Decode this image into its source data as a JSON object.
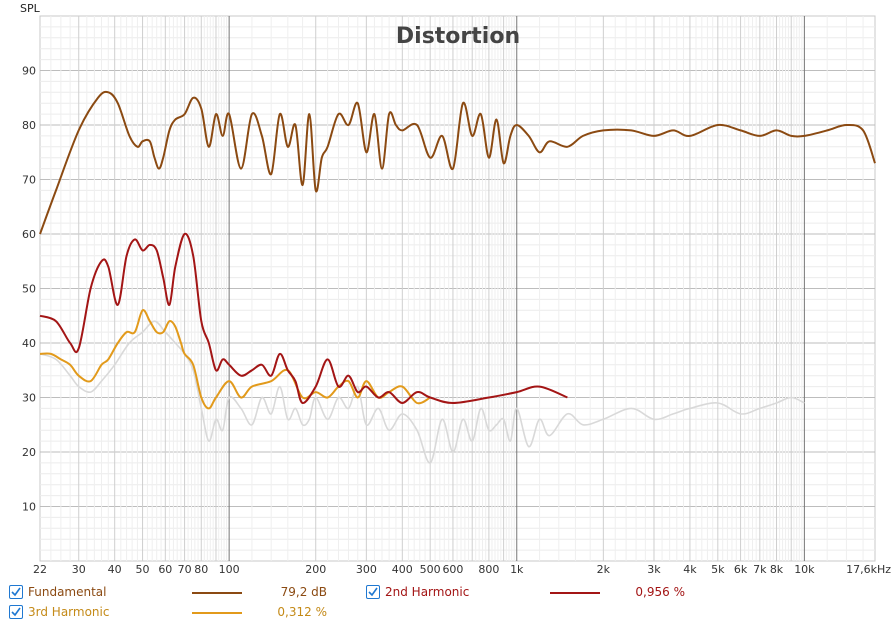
{
  "chart_data": {
    "type": "line",
    "title": "Distortion",
    "ylabel": "SPL",
    "xscale": "log",
    "xlim": [
      22,
      17600
    ],
    "ylim": [
      0,
      100
    ],
    "grid": true,
    "yticks": [
      10,
      20,
      30,
      40,
      50,
      60,
      70,
      80,
      90
    ],
    "xticks": [
      {
        "v": 22,
        "label": "22"
      },
      {
        "v": 30,
        "label": "30"
      },
      {
        "v": 40,
        "label": "40"
      },
      {
        "v": 50,
        "label": "50"
      },
      {
        "v": 60,
        "label": "60"
      },
      {
        "v": 70,
        "label": "70"
      },
      {
        "v": 80,
        "label": "80"
      },
      {
        "v": 100,
        "label": "100"
      },
      {
        "v": 200,
        "label": "200"
      },
      {
        "v": 300,
        "label": "300"
      },
      {
        "v": 400,
        "label": "400"
      },
      {
        "v": 500,
        "label": "500"
      },
      {
        "v": 600,
        "label": "600"
      },
      {
        "v": 800,
        "label": "800"
      },
      {
        "v": 1000,
        "label": "1k"
      },
      {
        "v": 2000,
        "label": "2k"
      },
      {
        "v": 3000,
        "label": "3k"
      },
      {
        "v": 4000,
        "label": "4k"
      },
      {
        "v": 5000,
        "label": "5k"
      },
      {
        "v": 6000,
        "label": "6k"
      },
      {
        "v": 7000,
        "label": "7k"
      },
      {
        "v": 8000,
        "label": "8k"
      },
      {
        "v": 10000,
        "label": "10k"
      },
      {
        "v": 17600,
        "label": "17,6kHz"
      }
    ],
    "series": [
      {
        "name": "Fundamental",
        "color": "#8b4a12",
        "x": [
          22,
          25,
          30,
          35,
          38,
          41,
          45,
          48,
          50,
          53,
          55,
          57,
          59,
          62,
          65,
          70,
          75,
          80,
          85,
          90,
          95,
          100,
          110,
          120,
          130,
          140,
          150,
          160,
          170,
          180,
          190,
          200,
          210,
          220,
          240,
          260,
          280,
          300,
          320,
          340,
          360,
          380,
          400,
          450,
          500,
          550,
          600,
          650,
          700,
          750,
          800,
          850,
          900,
          950,
          1000,
          1100,
          1200,
          1300,
          1500,
          1700,
          2000,
          2500,
          3000,
          3500,
          4000,
          5000,
          6000,
          7000,
          8000,
          9000,
          10000,
          12000,
          14000,
          16000,
          17600
        ],
        "y": [
          60,
          68,
          79,
          85,
          86,
          84,
          78,
          76,
          77,
          77,
          74,
          72,
          74,
          79,
          81,
          82,
          85,
          83,
          76,
          82,
          78,
          82,
          72,
          82,
          78,
          71,
          82,
          76,
          80,
          69,
          82,
          68,
          74,
          76,
          82,
          80,
          84,
          75,
          82,
          72,
          82,
          80,
          79,
          80,
          74,
          78,
          72,
          84,
          78,
          82,
          74,
          81,
          73,
          78,
          80,
          78,
          75,
          77,
          76,
          78,
          79,
          79,
          78,
          79,
          78,
          80,
          79,
          78,
          79,
          78,
          78,
          79,
          80,
          79,
          73
        ]
      },
      {
        "name": "2nd Harmonic",
        "color": "#a31515",
        "x": [
          22,
          25,
          28,
          30,
          33,
          36,
          38,
          41,
          44,
          47,
          50,
          53,
          56,
          59,
          62,
          65,
          70,
          75,
          80,
          85,
          90,
          95,
          100,
          110,
          120,
          130,
          140,
          150,
          160,
          170,
          180,
          200,
          220,
          240,
          260,
          280,
          300,
          330,
          360,
          400,
          450,
          500,
          600,
          800,
          1000,
          1200,
          1500
        ],
        "y": [
          45,
          44,
          40,
          39,
          50,
          55,
          54,
          47,
          56,
          59,
          57,
          58,
          57,
          52,
          47,
          54,
          60,
          56,
          44,
          40,
          35,
          37,
          36,
          34,
          35,
          36,
          34,
          38,
          35,
          33,
          29,
          32,
          37,
          32,
          34,
          31,
          32,
          30,
          31,
          29,
          31,
          30,
          29,
          30,
          31,
          32,
          30
        ]
      },
      {
        "name": "3rd Harmonic",
        "color": "#e29a1b",
        "x": [
          22,
          24,
          26,
          28,
          30,
          33,
          36,
          38,
          41,
          44,
          47,
          50,
          53,
          56,
          59,
          62,
          65,
          68,
          70,
          75,
          80,
          85,
          90,
          100,
          110,
          120,
          140,
          160,
          180,
          200,
          220,
          240,
          260,
          280,
          300,
          330,
          360,
          400,
          450,
          500
        ],
        "y": [
          38,
          38,
          37,
          36,
          34,
          33,
          36,
          37,
          40,
          42,
          42,
          46,
          44,
          42,
          42,
          44,
          43,
          40,
          38,
          36,
          30,
          28,
          30,
          33,
          30,
          32,
          33,
          35,
          30,
          31,
          30,
          32,
          33,
          30,
          33,
          30,
          31,
          32,
          29,
          30
        ]
      },
      {
        "name": "THD background",
        "color": "#d9d9d9",
        "x": [
          22,
          25,
          28,
          30,
          33,
          36,
          40,
          45,
          50,
          55,
          60,
          65,
          70,
          75,
          80,
          85,
          90,
          95,
          100,
          110,
          120,
          130,
          140,
          150,
          160,
          170,
          180,
          190,
          200,
          220,
          240,
          260,
          280,
          300,
          330,
          360,
          400,
          450,
          500,
          550,
          600,
          650,
          700,
          750,
          800,
          850,
          900,
          950,
          1000,
          1100,
          1200,
          1300,
          1500,
          1700,
          2000,
          2500,
          3000,
          3500,
          4000,
          5000,
          6000,
          7000,
          8000,
          9000,
          10000
        ],
        "y": [
          38,
          37,
          34,
          32,
          31,
          33,
          36,
          40,
          42,
          44,
          42,
          40,
          38,
          35,
          28,
          22,
          26,
          24,
          30,
          28,
          25,
          30,
          27,
          32,
          26,
          28,
          25,
          26,
          30,
          26,
          30,
          28,
          32,
          25,
          28,
          24,
          27,
          24,
          18,
          26,
          20,
          26,
          22,
          28,
          24,
          25,
          26,
          22,
          28,
          21,
          26,
          23,
          27,
          25,
          26,
          28,
          26,
          27,
          28,
          29,
          27,
          28,
          29,
          30,
          29
        ]
      }
    ]
  },
  "legend": {
    "items": [
      {
        "name": "Fundamental",
        "value": "79,2 dB",
        "color": "#8b4a12",
        "text_color": "#8b4a12"
      },
      {
        "name": "2nd Harmonic",
        "value": "0,956 %",
        "color": "#a31515",
        "text_color": "#a31515"
      },
      {
        "name": "3rd Harmonic",
        "value": "0,312 %",
        "color": "#e29a1b",
        "text_color": "#c48a18"
      }
    ]
  }
}
